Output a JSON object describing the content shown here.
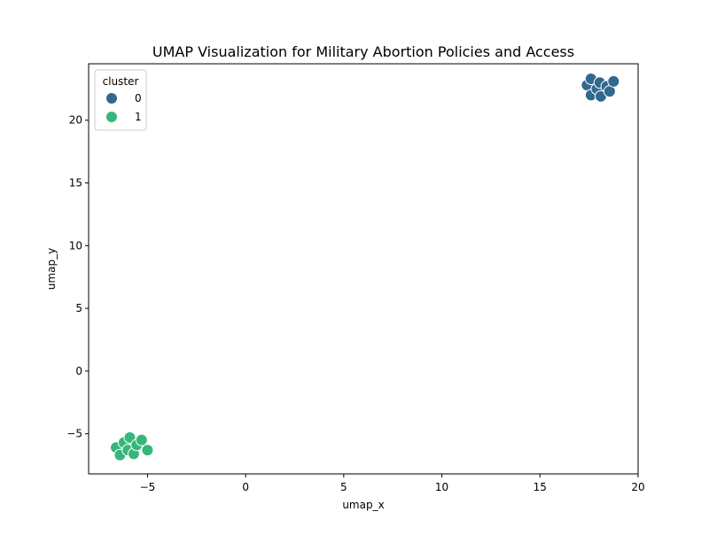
{
  "chart_data": {
    "type": "scatter",
    "title": "UMAP Visualization for Military Abortion Policies and Access",
    "xlabel": "umap_x",
    "ylabel": "umap_y",
    "xlim": [
      -8,
      20
    ],
    "ylim": [
      -8.2,
      24.5
    ],
    "xticks": [
      -5,
      0,
      5,
      10,
      15,
      20
    ],
    "yticks": [
      -5,
      0,
      5,
      10,
      15,
      20
    ],
    "grid": false,
    "legend": {
      "title": "cluster",
      "position": "top-left"
    },
    "series": [
      {
        "name": "0",
        "color": "#31688e",
        "points": [
          {
            "x": 17.4,
            "y": 22.8
          },
          {
            "x": 17.6,
            "y": 23.3
          },
          {
            "x": 17.6,
            "y": 22.0
          },
          {
            "x": 17.9,
            "y": 22.5
          },
          {
            "x": 18.05,
            "y": 23.0
          },
          {
            "x": 18.1,
            "y": 21.9
          },
          {
            "x": 18.4,
            "y": 22.7
          },
          {
            "x": 18.55,
            "y": 22.3
          },
          {
            "x": 18.75,
            "y": 23.1
          }
        ]
      },
      {
        "name": "1",
        "color": "#35b779",
        "points": [
          {
            "x": -6.6,
            "y": -6.1
          },
          {
            "x": -6.4,
            "y": -6.7
          },
          {
            "x": -6.2,
            "y": -5.7
          },
          {
            "x": -6.0,
            "y": -6.3
          },
          {
            "x": -5.9,
            "y": -5.3
          },
          {
            "x": -5.7,
            "y": -6.6
          },
          {
            "x": -5.55,
            "y": -5.9
          },
          {
            "x": -5.3,
            "y": -5.5
          },
          {
            "x": -5.0,
            "y": -6.3
          }
        ]
      }
    ]
  }
}
